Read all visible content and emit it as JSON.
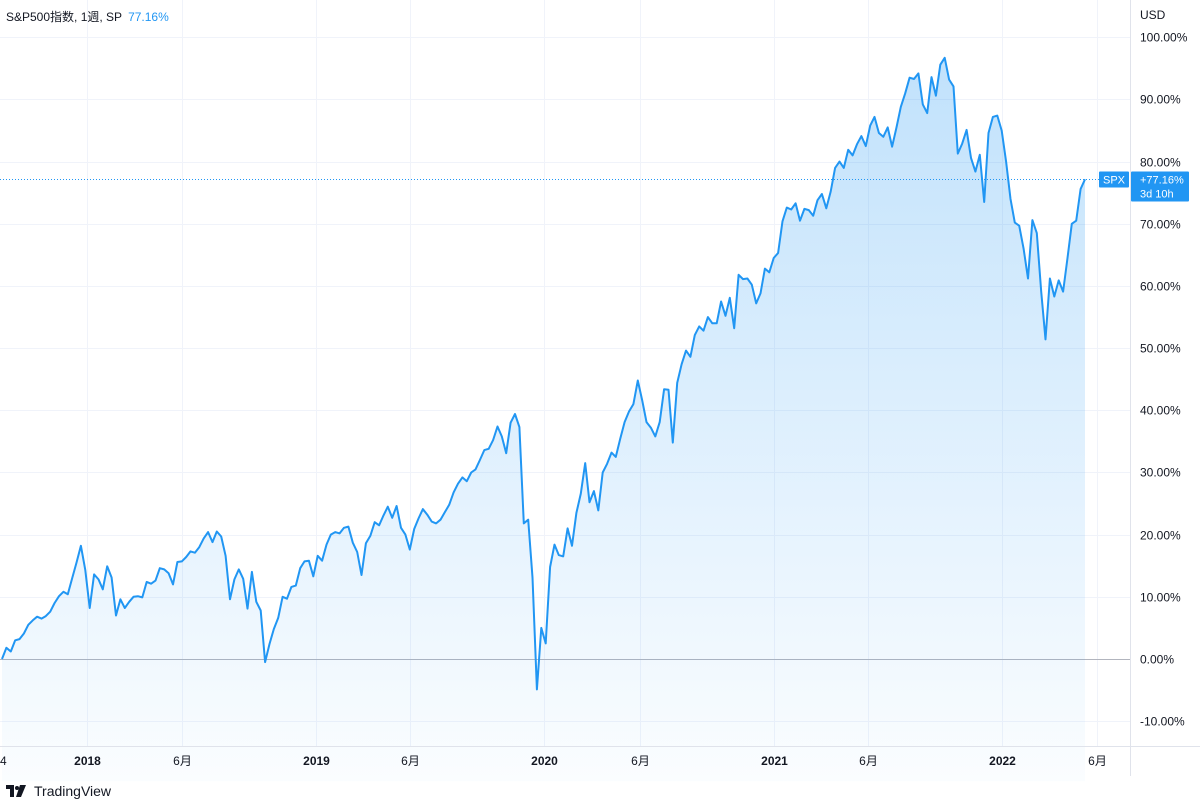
{
  "legend": {
    "symbol": "S&P500指数, 1週, SP",
    "value": "77.16%"
  },
  "footer": {
    "brand": "TradingView",
    "logo_icon": "tradingview-logo-icon"
  },
  "colors": {
    "line": "#2196f3",
    "grid": "#f0f3fa",
    "zero": "#b2b5be",
    "label_bg": "#2196f3",
    "text": "#131722"
  },
  "chart_data": {
    "type": "area",
    "currency": "USD",
    "y_unit": "%",
    "ylim": [
      -14,
      106
    ],
    "y_ticks": [
      -10,
      0,
      10,
      20,
      30,
      40,
      50,
      60,
      70,
      80,
      90,
      100
    ],
    "y_tick_labels": [
      "-10.00%",
      "0.00%",
      "10.00%",
      "20.00%",
      "30.00%",
      "40.00%",
      "50.00%",
      "60.00%",
      "70.00%",
      "80.00%",
      "90.00%",
      "100.00%"
    ],
    "x_start": "2017-08-18",
    "x_ticks": [
      {
        "date": "2017-08-04",
        "label": "4"
      },
      {
        "date": "2018-01-01",
        "label": "2018",
        "bold": true
      },
      {
        "date": "2018-06-01",
        "label": "6月"
      },
      {
        "date": "2019-01-01",
        "label": "2019",
        "bold": true
      },
      {
        "date": "2019-06-01",
        "label": "6月"
      },
      {
        "date": "2020-01-01",
        "label": "2020",
        "bold": true
      },
      {
        "date": "2020-06-01",
        "label": "6月"
      },
      {
        "date": "2021-01-01",
        "label": "2021",
        "bold": true
      },
      {
        "date": "2021-06-01",
        "label": "6月"
      },
      {
        "date": "2022-01-01",
        "label": "2022",
        "bold": true
      },
      {
        "date": "2022-06-01",
        "label": "6月"
      }
    ],
    "last_label": {
      "symbol": "SPX",
      "value": "+77.16%",
      "countdown": "3d 10h",
      "y": 77.16
    },
    "series": [
      {
        "values": [
          0.0,
          1.8,
          1.2,
          3.0,
          3.2,
          4.1,
          5.5,
          6.2,
          6.8,
          6.5,
          6.9,
          7.6,
          9.0,
          10.1,
          10.8,
          10.4,
          13.0,
          15.5,
          18.2,
          14.3,
          8.2,
          13.6,
          12.8,
          11.2,
          14.9,
          13.1,
          7.0,
          9.6,
          8.2,
          9.2,
          10.0,
          10.1,
          9.9,
          12.4,
          12.1,
          12.6,
          14.6,
          14.4,
          13.8,
          12.0,
          15.6,
          15.7,
          16.4,
          17.3,
          17.1,
          18.0,
          19.4,
          20.4,
          18.8,
          20.5,
          19.7,
          16.6,
          9.6,
          12.8,
          14.4,
          12.9,
          8.1,
          14.0,
          9.2,
          7.8,
          -0.5,
          2.4,
          4.8,
          6.6,
          10.0,
          9.7,
          11.6,
          11.8,
          14.6,
          15.7,
          15.8,
          13.3,
          16.6,
          15.8,
          18.4,
          20.0,
          20.4,
          20.2,
          21.1,
          21.3,
          18.7,
          17.2,
          13.5,
          18.6,
          19.8,
          22.0,
          21.5,
          23.1,
          24.5,
          22.7,
          24.6,
          21.1,
          20.0,
          17.6,
          20.9,
          22.6,
          24.1,
          23.2,
          22.1,
          21.8,
          22.4,
          23.6,
          24.8,
          26.8,
          28.2,
          29.2,
          28.6,
          30.0,
          30.5,
          32.0,
          33.6,
          33.8,
          35.2,
          37.4,
          35.8,
          33.1,
          38.0,
          39.4,
          37.3,
          21.8,
          22.4,
          13.1,
          -4.9,
          5.0,
          2.5,
          14.8,
          18.4,
          16.7,
          16.5,
          21.0,
          18.2,
          23.5,
          26.6,
          31.5,
          25.2,
          27.0,
          23.9,
          30.0,
          31.4,
          33.2,
          32.5,
          35.4,
          38.1,
          39.8,
          41.0,
          44.8,
          41.6,
          38.1,
          37.2,
          35.8,
          38.1,
          43.4,
          43.3,
          34.8,
          44.4,
          47.4,
          49.6,
          48.6,
          52.1,
          53.5,
          52.8,
          55.0,
          54.0,
          54.0,
          57.5,
          55.2,
          58.1,
          53.2,
          61.8,
          61.1,
          61.2,
          60.2,
          57.2,
          58.8,
          62.8,
          62.2,
          64.5,
          65.3,
          70.4,
          72.6,
          72.3,
          73.3,
          70.5,
          72.4,
          72.2,
          71.3,
          73.8,
          74.8,
          72.5,
          75.2,
          79.0,
          80.0,
          79.0,
          81.9,
          81.0,
          82.8,
          84.1,
          82.5,
          85.8,
          87.2,
          84.6,
          84.0,
          85.5,
          82.4,
          85.5,
          88.8,
          91.0,
          93.5,
          93.3,
          94.2,
          89.2,
          87.8,
          93.6,
          90.6,
          95.6,
          96.7,
          93.2,
          92.1,
          81.3,
          82.9,
          85.1,
          80.6,
          78.4,
          81.1,
          73.5,
          84.6,
          87.2,
          87.4,
          85.0,
          80.0,
          74.0,
          70.2,
          69.7,
          66.0,
          61.2,
          70.6,
          68.5,
          59.1,
          51.4,
          61.2,
          58.3,
          60.9,
          59.1,
          64.5,
          70.0,
          70.5,
          75.6,
          77.16
        ]
      }
    ]
  }
}
